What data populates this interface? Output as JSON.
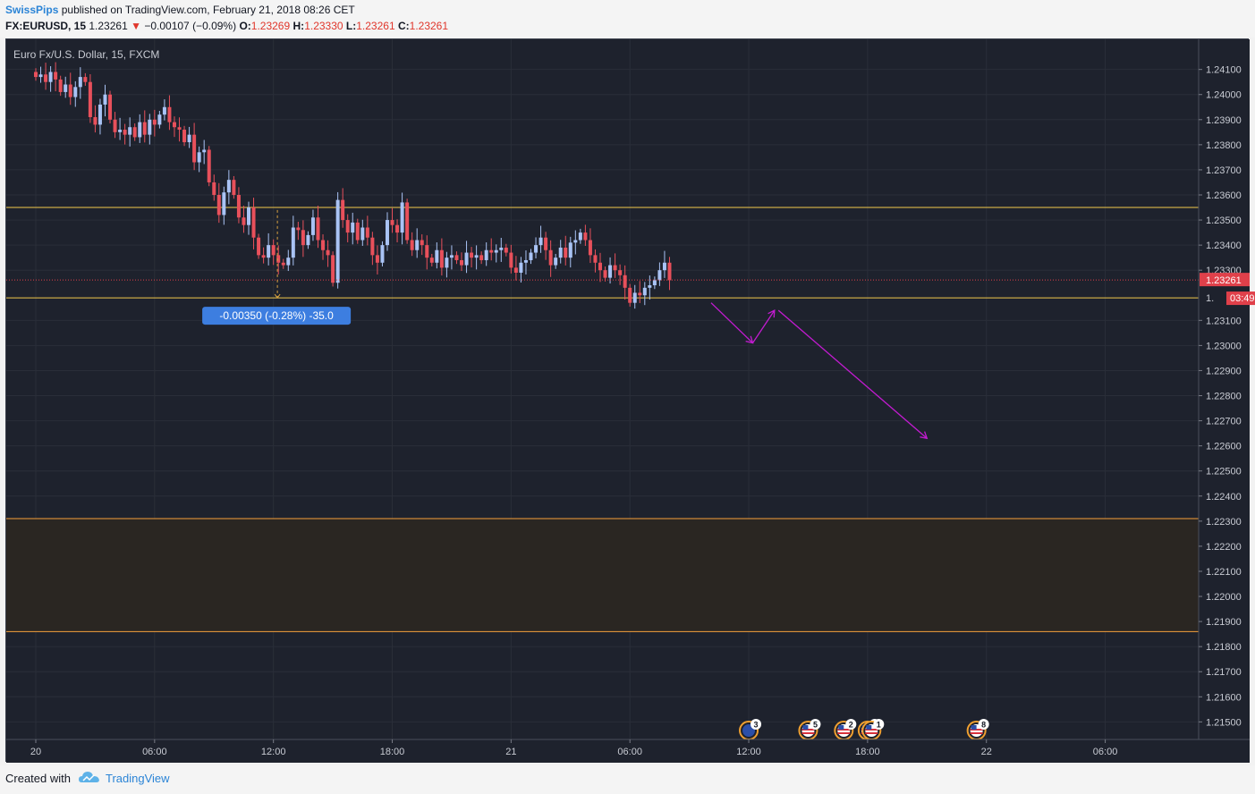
{
  "header": {
    "author": "SwissPips",
    "published": "published on TradingView.com, February 21, 2018 08:26 CET",
    "symbol": "FX:EURUSD, 15",
    "price": "1.23261",
    "change": "−0.00107 (−0.09%)",
    "open_label": "O:",
    "open": "1.23269",
    "high_label": "H:",
    "high": "1.23330",
    "low_label": "L:",
    "low": "1.23261",
    "close_label": "C:",
    "close": "1.23261",
    "down_icon": "triangle-down-icon"
  },
  "chart_title": "Euro Fx/U.S. Dollar, 15, FXCM",
  "footer": {
    "created_with": "Created with",
    "brand": "TradingView",
    "logo_icon": "tradingview-cloud-icon"
  },
  "colors": {
    "background": "#1e222d",
    "up": "#a9c3f5",
    "down": "#e8505b",
    "level": "#f2c94c",
    "zone_line": "#f5a03c",
    "zone_fill": "#2a2622",
    "projection": "#c21bd0",
    "last_price": "#e0404a",
    "measure": "#3d7ee0"
  },
  "chart_data": {
    "type": "candlestick",
    "title": "Euro Fx/U.S. Dollar, 15, FXCM",
    "ylim": [
      1.2143,
      1.2422
    ],
    "y_ticks": [
      "1.24100",
      "1.24000",
      "1.23900",
      "1.23800",
      "1.23700",
      "1.23600",
      "1.23500",
      "1.23400",
      "1.23300",
      "1.23100",
      "1.23000",
      "1.22900",
      "1.22800",
      "1.22700",
      "1.22600",
      "1.22500",
      "1.22400",
      "1.22300",
      "1.22200",
      "1.22100",
      "1.22000",
      "1.21900",
      "1.21800",
      "1.21700",
      "1.21600",
      "1.21500"
    ],
    "x_ticks": [
      {
        "label": "20",
        "hour": 0
      },
      {
        "label": "06:00",
        "hour": 6
      },
      {
        "label": "12:00",
        "hour": 12
      },
      {
        "label": "18:00",
        "hour": 18
      },
      {
        "label": "21",
        "hour": 24
      },
      {
        "label": "06:00",
        "hour": 30
      },
      {
        "label": "12:00",
        "hour": 36
      },
      {
        "label": "18:00",
        "hour": 42
      },
      {
        "label": "22",
        "hour": 48
      },
      {
        "label": "06:00",
        "hour": 54
      }
    ],
    "levels": [
      1.2355,
      1.2319
    ],
    "zone": [
      1.2186,
      1.2231
    ],
    "last_price": {
      "value": "1.23261",
      "countdown": "03:49"
    },
    "partial_label": "1.",
    "measure": {
      "text": "-0.00350 (-0.28%) -35.0",
      "from": 1.2354,
      "to": 1.2319,
      "hour": 12.2
    },
    "projection": [
      [
        34.1,
        1.2317
      ],
      [
        36.2,
        1.2301
      ],
      [
        37.3,
        1.2314
      ],
      [
        37.0,
        1.2316
      ],
      [
        37.5,
        1.2314
      ],
      [
        45.0,
        1.2263
      ]
    ],
    "event_markers": [
      {
        "hour": 36.0,
        "count": "3",
        "flag": "eu-flag-icon"
      },
      {
        "hour": 39.0,
        "count": "5",
        "flag": "us-flag-icon"
      },
      {
        "hour": 40.8,
        "count": "2",
        "flag": "us-flag-icon"
      },
      {
        "hour": 42.0,
        "count": "3",
        "flag": "us-flag-icon"
      },
      {
        "hour": 42.2,
        "count": "1",
        "flag": "us-flag-icon"
      },
      {
        "hour": 47.5,
        "count": "8",
        "flag": "us-flag-icon"
      }
    ],
    "candles_closes": [
      1.2407,
      1.2408,
      1.2405,
      1.2409,
      1.2406,
      1.2401,
      1.2404,
      1.2399,
      1.2403,
      1.2407,
      1.2405,
      1.2391,
      1.2388,
      1.2396,
      1.24,
      1.239,
      1.2385,
      1.2386,
      1.2384,
      1.2387,
      1.2383,
      1.2389,
      1.2384,
      1.239,
      1.2388,
      1.2392,
      1.2395,
      1.2389,
      1.2387,
      1.2386,
      1.2381,
      1.2384,
      1.2373,
      1.2377,
      1.2378,
      1.2365,
      1.236,
      1.2352,
      1.2361,
      1.2366,
      1.236,
      1.2351,
      1.2348,
      1.2355,
      1.2343,
      1.2336,
      1.2335,
      1.234,
      1.2336,
      1.2333,
      1.2332,
      1.2335,
      1.2347,
      1.2346,
      1.234,
      1.2344,
      1.2351,
      1.2342,
      1.2338,
      1.2336,
      1.2325,
      1.2358,
      1.235,
      1.2345,
      1.2349,
      1.2342,
      1.2347,
      1.2343,
      1.2336,
      1.2333,
      1.234,
      1.235,
      1.2348,
      1.2345,
      1.2357,
      1.2342,
      1.2338,
      1.2342,
      1.234,
      1.2335,
      1.2333,
      1.2338,
      1.2331,
      1.2335,
      1.2336,
      1.2334,
      1.2332,
      1.2337,
      1.2335,
      1.2336,
      1.2334,
      1.2338,
      1.2337,
      1.2338,
      1.2339,
      1.2337,
      1.2331,
      1.2329,
      1.2333,
      1.2334,
      1.2337,
      1.234,
      1.2343,
      1.2338,
      1.2332,
      1.2335,
      1.2339,
      1.2335,
      1.2341,
      1.2342,
      1.2345,
      1.2342,
      1.2336,
      1.2333,
      1.233,
      1.2327,
      1.2332,
      1.233,
      1.2328,
      1.2323,
      1.2317,
      1.2321,
      1.232,
      1.2323,
      1.2324,
      1.2326,
      1.233,
      1.2333,
      1.2326
    ]
  }
}
